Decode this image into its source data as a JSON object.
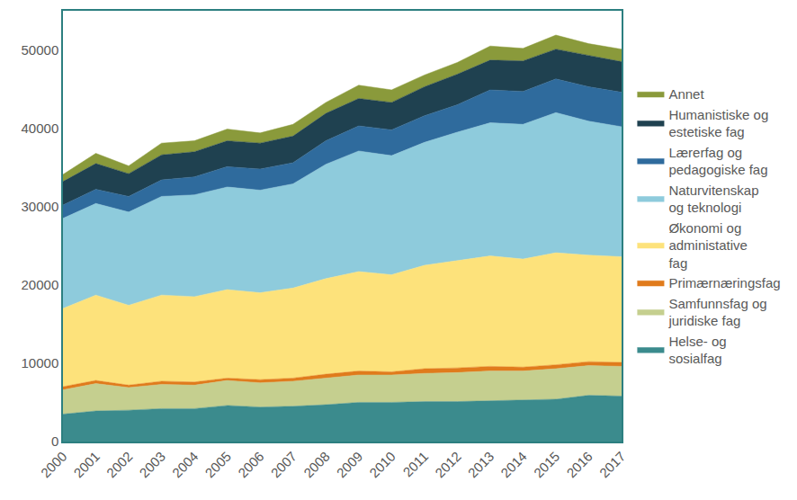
{
  "chart_data": {
    "type": "area",
    "stacked": true,
    "x": [
      2000,
      2001,
      2002,
      2003,
      2004,
      2005,
      2006,
      2007,
      2008,
      2009,
      2010,
      2011,
      2012,
      2013,
      2014,
      2015,
      2016,
      2017
    ],
    "xlim": [
      2000,
      2017
    ],
    "xticks": [
      2000,
      2001,
      2002,
      2003,
      2004,
      2005,
      2006,
      2007,
      2008,
      2009,
      2010,
      2011,
      2012,
      2013,
      2014,
      2015,
      2016,
      2017
    ],
    "ylim": [
      0,
      55000
    ],
    "yticks": [
      0,
      10000,
      20000,
      30000,
      40000,
      50000
    ],
    "grid": false,
    "legend": "right",
    "series": [
      {
        "name": "Helse- og sosialfag",
        "color": "#3b8b8d",
        "values": [
          3500,
          3900,
          4000,
          4200,
          4200,
          4600,
          4400,
          4500,
          4700,
          5000,
          5000,
          5100,
          5100,
          5200,
          5300,
          5400,
          5900,
          5800
        ]
      },
      {
        "name": "Samfunnsfag og juridiske fag",
        "color": "#c5cf8f",
        "values": [
          3100,
          3500,
          2900,
          3100,
          3000,
          3200,
          3100,
          3200,
          3400,
          3500,
          3500,
          3600,
          3700,
          3800,
          3700,
          3900,
          3800,
          3800
        ]
      },
      {
        "name": "Primærnæringsfag",
        "color": "#e07b1c",
        "values": [
          400,
          400,
          300,
          400,
          400,
          300,
          400,
          400,
          500,
          500,
          400,
          600,
          600,
          600,
          500,
          500,
          500,
          500
        ]
      },
      {
        "name": "Økonomi og administative fag",
        "color": "#fde27b",
        "values": [
          10000,
          10900,
          10200,
          11000,
          10900,
          11300,
          11100,
          11500,
          12200,
          12700,
          12400,
          13200,
          13700,
          14100,
          13800,
          14300,
          13600,
          13500
        ]
      },
      {
        "name": "Naturvitenskap og teknologi",
        "color": "#8ecbdc",
        "values": [
          11500,
          11700,
          11900,
          12600,
          13000,
          13100,
          13100,
          13300,
          14600,
          15400,
          15200,
          15700,
          16400,
          17000,
          17200,
          17900,
          17100,
          16600
        ]
      },
      {
        "name": "Lærerfag og pedagogiske fag",
        "color": "#2f6b9d",
        "values": [
          1700,
          1800,
          2000,
          2100,
          2300,
          2600,
          2700,
          2700,
          3000,
          3200,
          3300,
          3400,
          3500,
          4200,
          4200,
          4300,
          4400,
          4400
        ]
      },
      {
        "name": "Humanistiske og estetiske fag",
        "color": "#1f4150",
        "values": [
          3000,
          3300,
          2900,
          3200,
          3200,
          3300,
          3300,
          3400,
          3500,
          3500,
          3500,
          3700,
          3900,
          3800,
          3900,
          3800,
          4000,
          3900
        ]
      },
      {
        "name": "Annet",
        "color": "#8a9a3b",
        "values": [
          900,
          1300,
          1000,
          1500,
          1400,
          1500,
          1300,
          1500,
          1400,
          1700,
          1600,
          1500,
          1500,
          1800,
          1600,
          1800,
          1500,
          1600
        ]
      }
    ]
  }
}
